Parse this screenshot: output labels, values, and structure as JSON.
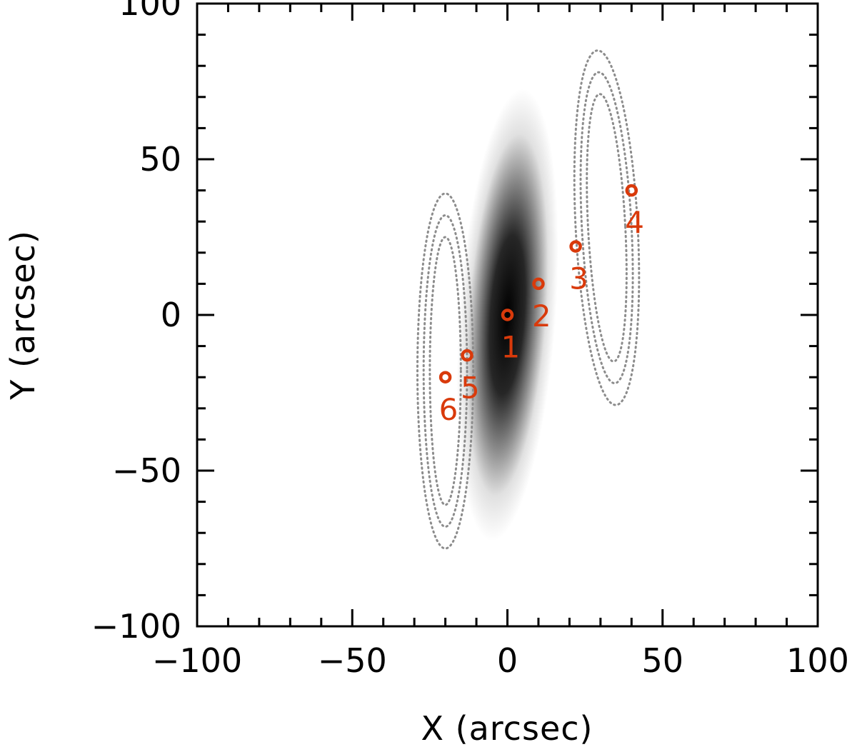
{
  "chart_data": {
    "type": "scatter",
    "title": "",
    "xlabel": "X (arcsec)",
    "ylabel": "Y (arcsec)",
    "xlim": [
      -100,
      100
    ],
    "ylim": [
      -100,
      100
    ],
    "xticks": [
      -100,
      -50,
      0,
      50,
      100
    ],
    "yticks": [
      -100,
      -50,
      0,
      50,
      100
    ],
    "xtick_labels": [
      "−100",
      "−50",
      "0",
      "50",
      "100"
    ],
    "ytick_labels": [
      "−100",
      "−50",
      "0",
      "50",
      "100"
    ],
    "minor_tick_step": 10,
    "grid": false,
    "background_image": {
      "type": "gaussian-blob",
      "center": [
        0,
        0
      ],
      "sigma_x": 6,
      "sigma_y": 28,
      "angle_deg": 4,
      "color": "#000000"
    },
    "contours": {
      "color": "#8c8c8c",
      "style": "dotted",
      "groups": [
        {
          "center": [
            -20,
            -18
          ],
          "radii_x": [
            9,
            7,
            5
          ],
          "radii_y": [
            57,
            50,
            43
          ],
          "angle_deg": 0
        },
        {
          "center": [
            32,
            28
          ],
          "radii_x": [
            10,
            8,
            6
          ],
          "radii_y": [
            57,
            50,
            43
          ],
          "angle_deg": -3
        }
      ]
    },
    "points": [
      {
        "label": "1",
        "x": 0,
        "y": 0,
        "color": "#000000",
        "label_dx": 1,
        "label_dy": -10
      },
      {
        "label": "2",
        "x": 10,
        "y": 10,
        "color": "#d93a0b",
        "label_dx": 1,
        "label_dy": -10
      },
      {
        "label": "3",
        "x": 22,
        "y": 22,
        "color": "#d93a0b",
        "label_dx": 1,
        "label_dy": -10
      },
      {
        "label": "4",
        "x": 40,
        "y": 40,
        "color": "#d93a0b",
        "label_dx": 1,
        "label_dy": -10
      },
      {
        "label": "5",
        "x": -13,
        "y": -13,
        "color": "#d93a0b",
        "label_dx": 1,
        "label_dy": -10
      },
      {
        "label": "6",
        "x": -20,
        "y": -20,
        "color": "#d93a0b",
        "label_dx": 1,
        "label_dy": -10
      }
    ],
    "label_color": "#d93a0b"
  }
}
